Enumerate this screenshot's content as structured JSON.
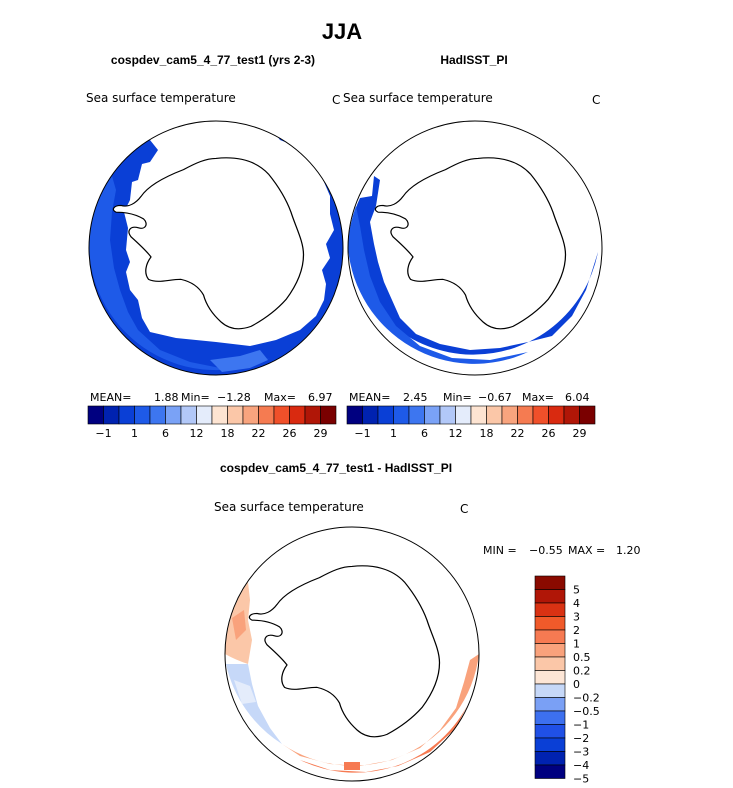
{
  "figure": {
    "title": "JJA",
    "difference_title": "cospdev_cam5_4_77_test1 - HadISST_PI"
  },
  "colors": {
    "full_scale": [
      "#000080",
      "#0022b0",
      "#0a3fd6",
      "#1e5ae8",
      "#3d76f0",
      "#7aa2f6",
      "#b2c8f8",
      "#e4ecfb",
      "#fde4d2",
      "#fbc7a8",
      "#f8a47e",
      "#f57b51",
      "#f0502a",
      "#d92a10",
      "#b01607",
      "#7a0000"
    ],
    "diff_scale": [
      "#000080",
      "#0022b0",
      "#0a3fd6",
      "#2050e6",
      "#3d70ef",
      "#7aa0f5",
      "#c6d8f8",
      "#fde6d6",
      "#fbc7a8",
      "#f9a27c",
      "#f67a52",
      "#f05a2a",
      "#d93213",
      "#b01607",
      "#8a0a00"
    ],
    "ice": "#ffffff"
  },
  "chart_data": [
    {
      "type": "heatmap",
      "panel": "test",
      "case_label": "cospdev_cam5_4_77_test1 (yrs 2-3)",
      "variable": "Sea surface temperature",
      "units": "C",
      "projection": "south-polar-stereographic",
      "stats": {
        "mean_label": "MEAN=",
        "mean": "1.88",
        "min_label": "Min=",
        "min": "−1.28",
        "max_label": "Max=",
        "max": "6.97"
      },
      "colorbar_ticks": [
        "−1",
        "1",
        "6",
        "12",
        "18",
        "22",
        "26",
        "29"
      ]
    },
    {
      "type": "heatmap",
      "panel": "observations",
      "case_label": "HadISST_PI",
      "variable": "Sea surface temperature",
      "units": "C",
      "projection": "south-polar-stereographic",
      "stats": {
        "mean_label": "MEAN=",
        "mean": "2.45",
        "min_label": "Min=",
        "min": "−0.67",
        "max_label": "Max=",
        "max": "6.04"
      },
      "colorbar_ticks": [
        "−1",
        "1",
        "6",
        "12",
        "18",
        "22",
        "26",
        "29"
      ]
    },
    {
      "type": "heatmap",
      "panel": "difference",
      "variable": "Sea surface temperature",
      "units": "C",
      "projection": "south-polar-stereographic",
      "stats": {
        "min_label": "MIN =",
        "min": "−0.55",
        "max_label": "MAX =",
        "max": "1.20"
      },
      "colorbar_levels": [
        "5",
        "4",
        "3",
        "2",
        "1",
        "0.5",
        "0.2",
        "0",
        "−0.2",
        "−0.5",
        "−1",
        "−2",
        "−3",
        "−4",
        "−5"
      ]
    }
  ]
}
